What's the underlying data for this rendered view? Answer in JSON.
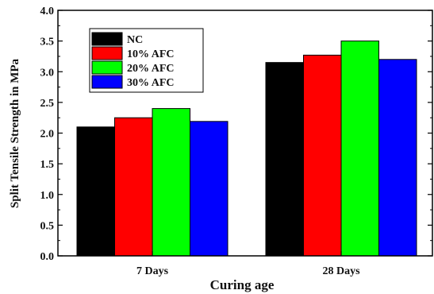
{
  "chart_data": {
    "type": "bar",
    "title": "",
    "xlabel": "Curing age",
    "ylabel": "Split Tensile Strength in MPa",
    "categories": [
      "7 Days",
      "28 Days"
    ],
    "series": [
      {
        "name": "NC",
        "color": "#000000",
        "values": [
          2.1,
          3.15
        ]
      },
      {
        "name": "10% AFC",
        "color": "#ff0000",
        "values": [
          2.25,
          3.27
        ]
      },
      {
        "name": "20% AFC",
        "color": "#00ff00",
        "values": [
          2.4,
          3.5
        ]
      },
      {
        "name": "30% AFC",
        "color": "#0000ff",
        "values": [
          2.19,
          3.2
        ]
      }
    ],
    "ylim": [
      0,
      4.0
    ],
    "yticks": [
      "0.0",
      "0.5",
      "1.0",
      "1.5",
      "2.0",
      "2.5",
      "3.0",
      "3.5",
      "4.0"
    ],
    "grid": false,
    "legend_position": "top-left"
  }
}
